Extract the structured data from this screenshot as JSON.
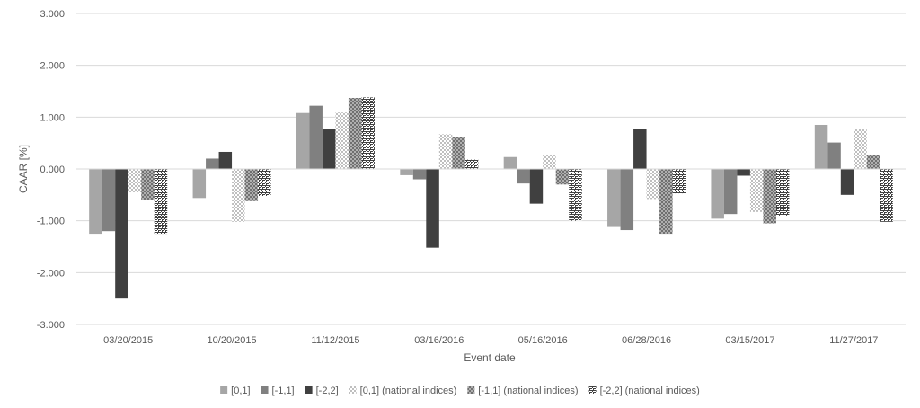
{
  "chart_data": {
    "type": "bar",
    "title": "",
    "xlabel": "Event date",
    "ylabel": "CAAR [%]",
    "ylim": [
      -3,
      3
    ],
    "y_ticks": [
      "-3.000",
      "-2.000",
      "-1.000",
      "0.000",
      "1.000",
      "2.000",
      "3.000"
    ],
    "y_tick_values": [
      -3,
      -2,
      -1,
      0,
      1,
      2,
      3
    ],
    "grid": true,
    "legend_position": "bottom",
    "categories": [
      "03/20/2015",
      "10/20/2015",
      "11/12/2015",
      "03/16/2016",
      "05/16/2016",
      "06/28/2016",
      "03/15/2017",
      "11/27/2017"
    ],
    "series": [
      {
        "name": "[0,1]",
        "color": "#a6a6a6",
        "pattern": "solid",
        "values": [
          -1.25,
          -0.56,
          1.08,
          -0.12,
          0.23,
          -1.12,
          -0.96,
          0.85
        ]
      },
      {
        "name": "[-1,1]",
        "color": "#808080",
        "pattern": "solid",
        "values": [
          -1.2,
          0.2,
          1.22,
          -0.2,
          -0.28,
          -1.18,
          -0.87,
          0.51
        ]
      },
      {
        "name": "[-2,2]",
        "color": "#404040",
        "pattern": "solid",
        "values": [
          -2.5,
          0.33,
          0.78,
          -1.52,
          -0.67,
          0.77,
          -0.13,
          -0.5
        ]
      },
      {
        "name": "[0,1] (national indices)",
        "color": "#bfbfbf",
        "pattern": "dots",
        "values": [
          -0.45,
          -1.02,
          1.09,
          0.67,
          0.26,
          -0.58,
          -0.83,
          0.78
        ]
      },
      {
        "name": "[-1,1] (national indices)",
        "color": "#808080",
        "pattern": "checker",
        "values": [
          -0.6,
          -0.62,
          1.37,
          0.61,
          -0.3,
          -1.25,
          -1.05,
          0.27
        ]
      },
      {
        "name": "[-2,2] (national indices)",
        "color": "#404040",
        "pattern": "weave",
        "values": [
          -1.25,
          -0.52,
          1.38,
          0.18,
          -1.0,
          -0.47,
          -0.9,
          -1.02
        ]
      }
    ]
  }
}
